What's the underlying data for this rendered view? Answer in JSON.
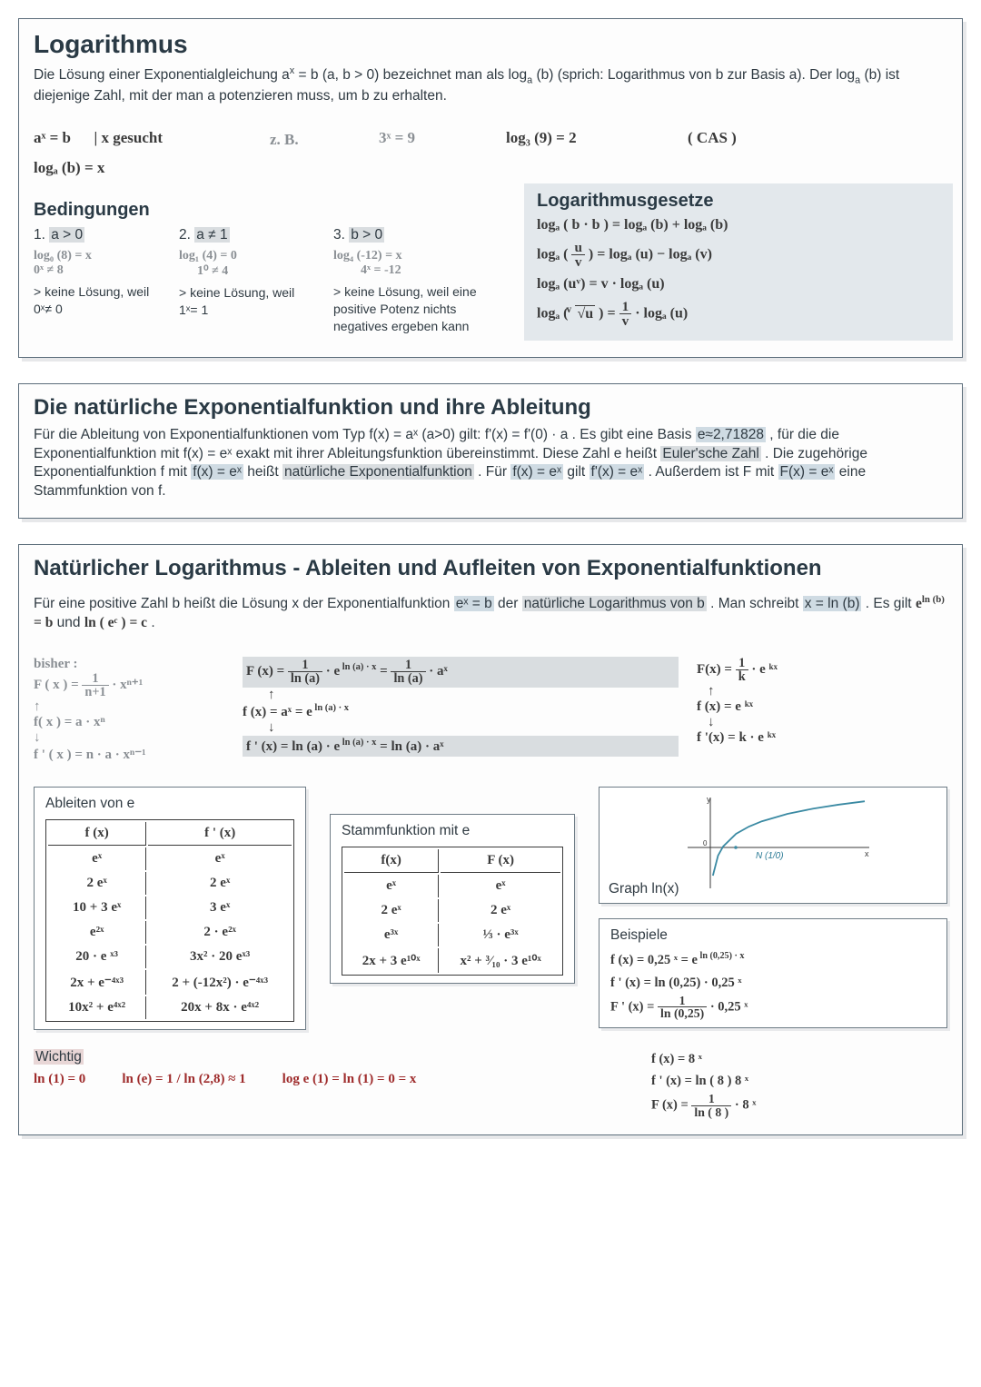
{
  "colors": {
    "border": "#5b6d7a",
    "heading": "#2a3a45",
    "body": "#2f3a42",
    "hand_gray": "#8a8f94",
    "hand_red": "#9e2b2b",
    "hl_blue": "#cfdbe3",
    "hl_gray": "#d9dde0",
    "hl_pink": "#e8d6d6",
    "graph_curve": "#3b8aa3"
  },
  "panel1": {
    "title": "Logarithmus",
    "intro_a": "Die Lösung einer Exponentialgleichung a",
    "intro_b": " = b (a, b > 0) bezeichnet man als log",
    "intro_c": "(b) (sprich: Logarithmus von b zur Basis a). Der log",
    "intro_d": "(b) ist diejenige Zahl, mit der man a potenzieren muss, um b zu erhalten.",
    "row1": {
      "eq1": "aˣ = b",
      "eq1b": "| x gesucht",
      "eq2a": "z. B.",
      "eq2b": "3ˣ = 9",
      "eq3": "log₃ (9) = 2",
      "eq3b": "( CAS )",
      "eq4": "logₐ (b) = x"
    },
    "bed_title": "Bedingungen",
    "bed": [
      {
        "num": "1.",
        "cond": "a > 0",
        "l1": "log₀ (8) = x",
        "l2": "0ˣ ≠ 8",
        "note": "> keine Lösung, weil 0ˣ≠ 0"
      },
      {
        "num": "2.",
        "cond": "a ≠ 1",
        "l1": "log₁ (4) = 0",
        "l2": "1⁰ ≠ 4",
        "note": "> keine Lösung, weil 1ˣ= 1"
      },
      {
        "num": "3.",
        "cond": "b > 0",
        "l1": "log₄ (-12) = x",
        "l2": "4ˣ = -12",
        "note": "> keine Lösung, weil eine positive Potenz nichts negatives ergeben kann"
      }
    ],
    "law_title": "Logarithmusgesetze",
    "laws": {
      "l1": "logₐ ( b · b )  =   logₐ (b) + logₐ (b)",
      "l2a": "logₐ ( ",
      "l2b": " ) =   logₐ (u) − logₐ (v)",
      "l2_frac_n": "u",
      "l2_frac_d": "v",
      "l3": "logₐ (uᵛ)  =   v ·  logₐ (u)",
      "l4a": "logₐ ( ",
      "l4root_v": "v",
      "l4root_u": "u",
      "l4b": " ) =  ",
      "l4_frac_n": "1",
      "l4_frac_d": "v",
      "l4c": "  ·  logₐ (u)"
    }
  },
  "panel2": {
    "title": "Die natürliche Exponentialfunktion und ihre Ableitung",
    "p1a": "Für die Ableitung von Exponentialfunktionen vom Typ f(x) = aˣ (a>0) gilt: f'(x) = f'(0) · a  . Es gibt eine Basis ",
    "p1_hl1": "e≈2,71828",
    "p1b": ", für die die Exponentialfunktion mit f(x) = eˣ exakt mit ihrer Ableitungsfunktion übereinstimmt. Diese Zahl e heißt ",
    "p1_hl2": "Euler'sche Zahl",
    "p1c": ". Die zugehörige Exponentialfunktion f mit ",
    "p1_hl3": "f(x) = eˣ",
    "p1d": " heißt ",
    "p1_hl4": "natürliche Exponentialfunktion",
    "p1e": ". Für ",
    "p1_hl5": "f(x) = eˣ",
    "p1f": " gilt ",
    "p1_hl6": "f'(x) = eˣ",
    "p1g": ". Außerdem ist F mit ",
    "p1_hl7": "F(x) = eˣ",
    "p1h": " eine Stammfunktion von f."
  },
  "panel3": {
    "title": "Natürlicher Logarithmus - Ableiten und Aufleiten von Exponentialfunktionen",
    "p_a": "Für eine positive Zahl b heißt die Lösung x der Exponentialfunktion ",
    "p_hl1": "eˣ = b",
    "p_b": " der ",
    "p_hl2": "natürliche Logarithmus von b",
    "p_c": ". Man schreibt ",
    "p_hl3": "x = ln (b)",
    "p_d": ". Es gilt  ",
    "p_hand1a": "e",
    "p_hand1b": "ln (b)",
    "p_hand1c": " = b",
    "p_e": "  und  ",
    "p_hand2": "ln ( eᶜ ) = c",
    "p_f": " .",
    "colL": {
      "header": "bisher :",
      "F": "F ( x ) = ",
      "F_frac_n": "1",
      "F_frac_d": "n+1",
      "F_tail": " · xⁿ⁺¹",
      "f": "f( x ) = a · xⁿ",
      "fp": "f ' ( x ) = n · a · xⁿ⁻¹"
    },
    "colM": {
      "F1a": "F (x) = ",
      "F1_frac_n": "1",
      "F1_frac_d": "ln (a)",
      "F1b": " · e",
      "F1_exp": " ln (a) · x",
      "F1c": "   =   ",
      "F1_frac2_n": "1",
      "F1_frac2_d": "ln (a)",
      "F1d": "  ·  aˣ",
      "f1a": "f (x) =   aˣ   =   e",
      "f1_exp": " ln (a) · x",
      "fp1a": "f ' (x) =  ln (a)  ·  e",
      "fp1_exp": " ln (a) · x",
      "fp1b": "   =   ln (a)  ·  aˣ"
    },
    "colR": {
      "F": "F(x) = ",
      "F_frac_n": "1",
      "F_frac_d": "k",
      "F_tail": " · e ᵏˣ",
      "f": "f (x) =  e ᵏˣ",
      "fp": "f '(x) = k · e ᵏˣ"
    },
    "tblA": {
      "title": "Ableiten von e",
      "h1": "f (x)",
      "h2": "f ' (x)",
      "rows": [
        [
          "eˣ",
          "eˣ"
        ],
        [
          "2 eˣ",
          "2 eˣ"
        ],
        [
          "10 + 3 eˣ",
          "3 eˣ"
        ],
        [
          "e²ˣ",
          "2 · e²ˣ"
        ],
        [
          "20 · e ˣ³",
          "3x² · 20 eˣ³"
        ],
        [
          "2x + e⁻⁴ˣ³",
          "2 + (-12x²) · e⁻⁴ˣ³"
        ],
        [
          "10x² + e⁴ˣ²",
          "20x + 8x · e⁴ˣ²"
        ]
      ]
    },
    "tblB": {
      "title": "Stammfunktion mit e",
      "h1": "f(x)",
      "h2": "F (x)",
      "rows": [
        [
          "eˣ",
          "eˣ"
        ],
        [
          "2 eˣ",
          "2 eˣ"
        ],
        [
          "e³ˣ",
          "⅓ · e³ˣ"
        ],
        [
          "2x + 3 e¹⁰ˣ",
          "x² + ³⁄₁₀ · 3 e¹⁰ˣ"
        ]
      ]
    },
    "graph": {
      "title": "Graph ln(x)",
      "curve_color": "#3b8aa3",
      "axis_color": "#3a3a3a",
      "nlabel": "N (1/0)",
      "xlim": [
        0,
        6
      ],
      "ylim": [
        -3,
        2
      ],
      "points": [
        [
          0.1,
          -2.3
        ],
        [
          0.3,
          -1.2
        ],
        [
          0.5,
          -0.69
        ],
        [
          1,
          0
        ],
        [
          1.5,
          0.4
        ],
        [
          2,
          0.69
        ],
        [
          3,
          1.1
        ],
        [
          4,
          1.39
        ],
        [
          5,
          1.61
        ],
        [
          6,
          1.79
        ]
      ]
    },
    "beispiele": {
      "title": "Beispiele",
      "l1a": "f (x) =  0,25 ˣ   =   e",
      "l1_exp": " ln (0,25) · x",
      "l2": "f ' (x) = ln (0,25) ·  0,25 ˣ",
      "l3a": "F ' (x) =  ",
      "l3_frac_n": "1",
      "l3_frac_d": "ln (0,25)",
      "l3b": "  · 0,25 ˣ",
      "l4": "f (x) =  8 ˣ",
      "l5": "f ' (x) =  ln ( 8 )     8 ˣ",
      "l6a": "F (x) =  ",
      "l6_frac_n": "1",
      "l6_frac_d": "ln ( 8 )",
      "l6b": "  ·  8 ˣ"
    },
    "wichtig": {
      "title": "Wichtig",
      "l1": "ln (1) = 0",
      "l2": "ln (e) = 1   /   ln (2,8) ≈ 1",
      "l3": "log e (1) = ln (1) = 0 = x"
    }
  }
}
